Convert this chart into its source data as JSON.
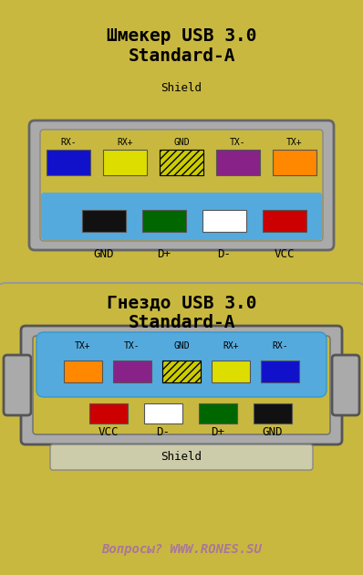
{
  "bg_color": "#c8b840",
  "panel_bg": "#c8b840",
  "gray_outer": "#aaaaaa",
  "gray_border": "#555555",
  "blue_fill": "#55aadd",
  "title1_line1": "Шмекер USB 3.0",
  "title1_line2": "Standard-A",
  "title2_line1": "Гнездо USB 3.0",
  "title2_line2": "Standard-A",
  "footer": "Вопросы? WWW.RONES.SU",
  "footer_color": "#aa7799",
  "plug": {
    "shield_label": "Shield",
    "usb3_pins": [
      {
        "label": "RX-",
        "color": "#1111cc"
      },
      {
        "label": "RX+",
        "color": "#dddd00"
      },
      {
        "label": "GND",
        "color": "hatched"
      },
      {
        "label": "TX-",
        "color": "#882288"
      },
      {
        "label": "TX+",
        "color": "#ff8800"
      }
    ],
    "usb2_pins": [
      {
        "label": "GND",
        "color": "#111111"
      },
      {
        "label": "D+",
        "color": "#006600"
      },
      {
        "label": "D-",
        "color": "#ffffff"
      },
      {
        "label": "VCC",
        "color": "#cc0000"
      }
    ],
    "bottom_labels": [
      "GND",
      "D+",
      "D-",
      "VCC"
    ]
  },
  "socket": {
    "shield_label": "Shield",
    "usb3_pins": [
      {
        "label": "TX+",
        "color": "#ff8800"
      },
      {
        "label": "TX-",
        "color": "#882288"
      },
      {
        "label": "GND",
        "color": "hatched"
      },
      {
        "label": "RX+",
        "color": "#dddd00"
      },
      {
        "label": "RX-",
        "color": "#1111cc"
      }
    ],
    "usb2_pins": [
      {
        "label": "VCC",
        "color": "#cc0000"
      },
      {
        "label": "D-",
        "color": "#ffffff"
      },
      {
        "label": "D+",
        "color": "#006600"
      },
      {
        "label": "GND",
        "color": "#111111"
      }
    ],
    "bottom_labels": [
      "VCC",
      "D-",
      "D+",
      "GND"
    ]
  }
}
